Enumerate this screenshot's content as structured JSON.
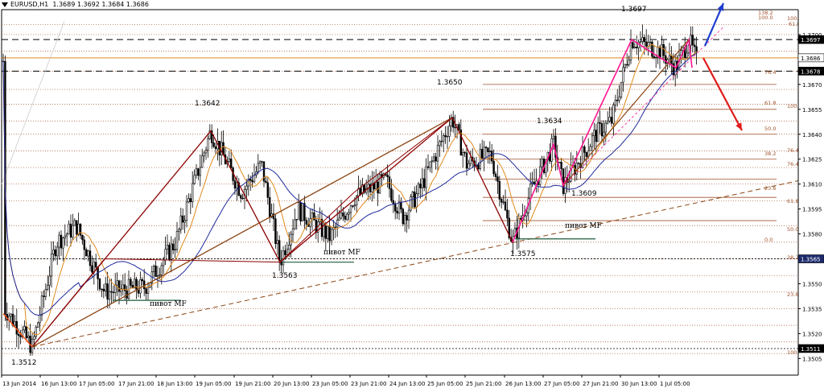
{
  "header": {
    "symbol": "EURUSD,H1",
    "ohlc": "1.3689 1.3692 1.3684 1.3686"
  },
  "colors": {
    "background": "#ffffff",
    "candle": "#000000",
    "fast_ma": "#e08a1e",
    "slow_ma": "#1e2a9c",
    "wave_up": "#8b0000",
    "wave_down": "#8b4513",
    "wave_recent": "#ff1493",
    "fib_grid": "#a0522d",
    "arrow_up": "#1e3ecf",
    "arrow_down": "#e01b1b",
    "current_price_line": "#e08a1e",
    "dashed_level": "#000000"
  },
  "chart_data": {
    "type": "candlestick",
    "title": "EURUSD,H1",
    "ylim": [
      1.3495,
      1.3715
    ],
    "x_tick_labels": [
      "13 Jun 2014",
      "16 Jun 13:00",
      "17 Jun 05:00",
      "17 Jun 21:00",
      "18 Jun 13:00",
      "19 Jun 05:00",
      "19 Jun 21:00",
      "20 Jun 13:00",
      "23 Jun 05:00",
      "23 Jun 21:00",
      "24 Jun 13:00",
      "25 Jun 05:00",
      "25 Jun 21:00",
      "26 Jun 13:00",
      "27 Jun 05:00",
      "27 Jun 21:00",
      "30 Jun 13:00",
      "1 Jul 05:00"
    ],
    "y_ticks": [
      1.3505,
      1.352,
      1.3535,
      1.355,
      1.358,
      1.3595,
      1.361,
      1.3625,
      1.364,
      1.3655,
      1.367,
      1.37
    ],
    "y_axis_badges": [
      {
        "value": "1.3697",
        "style": "dark"
      },
      {
        "value": "1.3686",
        "style": "current"
      },
      {
        "value": "1.3678",
        "style": "dark"
      },
      {
        "value": "1.3565",
        "style": "navy"
      },
      {
        "value": "1.3511",
        "style": "dark"
      }
    ],
    "swing_points": [
      {
        "label": "1.3512",
        "price": 1.3512
      },
      {
        "label": "1.3642",
        "price": 1.3642
      },
      {
        "label": "1.3563",
        "price": 1.3563
      },
      {
        "label": "1.3650",
        "price": 1.365
      },
      {
        "label": "1.3575",
        "price": 1.3575
      },
      {
        "label": "1.3634",
        "price": 1.3634
      },
      {
        "label": "1.3609",
        "price": 1.3609
      },
      {
        "label": "1.3697",
        "price": 1.3697
      }
    ],
    "annotations": [
      "пивот MF",
      "пивот MF",
      "пивот MF"
    ],
    "fib_labels": {
      "short": [
        "138.2",
        "61.8",
        "100.0"
      ],
      "mid": [
        "76.4",
        "61.8",
        "50.0",
        "38.2",
        "23.6",
        "0.0"
      ],
      "long": [
        "100.0",
        "76.4",
        "76.4",
        "61.8",
        "50.0",
        "38.2",
        "23.6",
        "100.0"
      ]
    },
    "dashed_levels": [
      1.3697,
      1.3678
    ],
    "current_price": 1.3686
  }
}
